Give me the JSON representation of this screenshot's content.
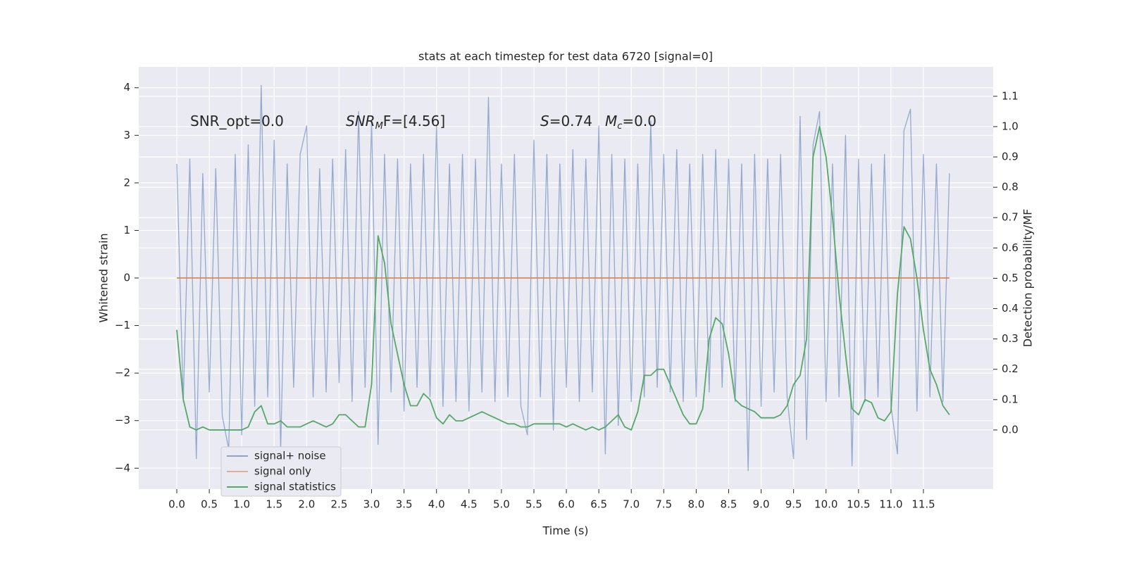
{
  "chart_data": {
    "type": "line",
    "title": "stats at each timestep for test data 6720 [signal=0]",
    "xlabel": "Time (s)",
    "ylabel": "Whitened strain",
    "y2label": "Detection probability/MF",
    "annotations": [
      [
        "SNR_opt=0.0"
      ],
      [
        "SNR",
        "M",
        "F=[4.56]"
      ],
      [
        "S",
        "=0.74"
      ],
      [
        "M",
        "c",
        "=0.0"
      ]
    ],
    "legend": "lower left",
    "grid": true,
    "xlim": [
      -0.586,
      12.574
    ],
    "ylim": [
      -4.44,
      4.44
    ],
    "y2lim": [
      -0.195,
      1.197
    ],
    "xticks": [
      {
        "value": 0,
        "label": "0.0"
      },
      {
        "value": 0.5,
        "label": "0.5"
      },
      {
        "value": 1,
        "label": "1.0"
      },
      {
        "value": 1.5,
        "label": "1.5"
      },
      {
        "value": 2,
        "label": "2.0"
      },
      {
        "value": 2.5,
        "label": "2.5"
      },
      {
        "value": 3,
        "label": "3.0"
      },
      {
        "value": 3.5,
        "label": "3.5"
      },
      {
        "value": 4,
        "label": "4.0"
      },
      {
        "value": 4.5,
        "label": "4.5"
      },
      {
        "value": 5,
        "label": "5.0"
      },
      {
        "value": 5.5,
        "label": "5.5"
      },
      {
        "value": 6,
        "label": "6.0"
      },
      {
        "value": 6.5,
        "label": "6.5"
      },
      {
        "value": 7,
        "label": "7.0"
      },
      {
        "value": 7.5,
        "label": "7.5"
      },
      {
        "value": 8,
        "label": "8.0"
      },
      {
        "value": 8.5,
        "label": "8.5"
      },
      {
        "value": 9,
        "label": "9.0"
      },
      {
        "value": 9.5,
        "label": "9.5"
      },
      {
        "value": 10,
        "label": "10.0"
      },
      {
        "value": 10.5,
        "label": "10.5"
      },
      {
        "value": 11,
        "label": "11.0"
      },
      {
        "value": 11.5,
        "label": "11.5"
      }
    ],
    "yticks": [
      {
        "value": -4,
        "label": "−4"
      },
      {
        "value": -3,
        "label": "−3"
      },
      {
        "value": -2,
        "label": "−2"
      },
      {
        "value": -1,
        "label": "−1"
      },
      0,
      1,
      2,
      3,
      4
    ],
    "y2ticks": [
      {
        "value": 0,
        "label": "0.0"
      },
      0.1,
      0.2,
      0.3,
      0.4,
      0.5,
      0.6,
      0.7,
      0.8,
      0.9,
      {
        "value": 1,
        "label": "1.0"
      },
      1.1
    ],
    "x": [
      0,
      0.1,
      0.2,
      0.3,
      0.4,
      0.5,
      0.6,
      0.7,
      0.8,
      0.9,
      1,
      1.1,
      1.2,
      1.3,
      1.4,
      1.5,
      1.6,
      1.7,
      1.8,
      1.9,
      2,
      2.1,
      2.2,
      2.3,
      2.4,
      2.5,
      2.6,
      2.7,
      2.8,
      2.9,
      3,
      3.1,
      3.2,
      3.3,
      3.4,
      3.5,
      3.6,
      3.7,
      3.8,
      3.9,
      4,
      4.1,
      4.2,
      4.3,
      4.4,
      4.5,
      4.6,
      4.7,
      4.8,
      4.9,
      5,
      5.1,
      5.2,
      5.3,
      5.4,
      5.5,
      5.6,
      5.7,
      5.8,
      5.9,
      6,
      6.1,
      6.2,
      6.3,
      6.4,
      6.5,
      6.6,
      6.7,
      6.8,
      6.9,
      7,
      7.1,
      7.2,
      7.3,
      7.4,
      7.5,
      7.6,
      7.7,
      7.8,
      7.9,
      8,
      8.1,
      8.2,
      8.3,
      8.4,
      8.5,
      8.6,
      8.7,
      8.8,
      8.9,
      9,
      9.1,
      9.2,
      9.3,
      9.4,
      9.5,
      9.6,
      9.7,
      9.8,
      9.9,
      10,
      10.1,
      10.2,
      10.3,
      10.4,
      10.5,
      10.6,
      10.7,
      10.8,
      10.9,
      11,
      11.1,
      11.2,
      11.3,
      11.4,
      11.5,
      11.6,
      11.7,
      11.8,
      11.9
    ],
    "series": [
      {
        "name": "signal+ noise",
        "color": "#4c72b0",
        "axis": "y",
        "values": [
          2.4,
          -2.6,
          2.5,
          -3.8,
          2.2,
          -2.4,
          2.3,
          -2.9,
          -3.6,
          2.6,
          -3.3,
          2.8,
          -2.7,
          4.05,
          -2.5,
          2.9,
          -3.6,
          2.4,
          -2.3,
          2.6,
          3.2,
          -2.5,
          2.3,
          -2.4,
          2.5,
          -2.2,
          2.7,
          -2.6,
          3.5,
          -2.3,
          3.3,
          -3.5,
          2.6,
          -2.4,
          2.5,
          -2.8,
          2.4,
          -2.3,
          2.6,
          -2.5,
          3.2,
          -2.7,
          2.4,
          -2.6,
          2.6,
          -2.8,
          2.5,
          -2.4,
          3.8,
          -2.6,
          2.4,
          -2.5,
          2.6,
          -2.7,
          -3.3,
          2.9,
          -2.5,
          2.6,
          -3.2,
          2.4,
          -2.3,
          2.7,
          -2.6,
          2.5,
          -2.4,
          3.2,
          -3.7,
          2.6,
          -3.1,
          2.5,
          -2.6,
          2.4,
          -2.5,
          3.3,
          -2.3,
          2.6,
          -2.4,
          2.7,
          -2.6,
          2.4,
          -2.5,
          2.6,
          -2.4,
          2.7,
          -2.3,
          2.5,
          -2.6,
          2.4,
          -4.05,
          2.6,
          -2.7,
          2.5,
          -2.4,
          2.6,
          -2.5,
          -3.8,
          3.4,
          -3.4,
          2.8,
          3.5,
          -2.6,
          2.4,
          -2.5,
          3.0,
          -3.95,
          2.5,
          -2.6,
          2.4,
          -2.5,
          2.6,
          -2.7,
          -3.7,
          3.1,
          3.55,
          -2.8,
          2.6,
          -2.5,
          2.4,
          -2.6,
          2.2
        ]
      },
      {
        "name": "signal only",
        "color": "#dd8452",
        "axis": "y",
        "values": [
          0,
          0,
          0,
          0,
          0,
          0,
          0,
          0,
          0,
          0,
          0,
          0,
          0,
          0,
          0,
          0,
          0,
          0,
          0,
          0,
          0,
          0,
          0,
          0,
          0,
          0,
          0,
          0,
          0,
          0,
          0,
          0,
          0,
          0,
          0,
          0,
          0,
          0,
          0,
          0,
          0,
          0,
          0,
          0,
          0,
          0,
          0,
          0,
          0,
          0,
          0,
          0,
          0,
          0,
          0,
          0,
          0,
          0,
          0,
          0,
          0,
          0,
          0,
          0,
          0,
          0,
          0,
          0,
          0,
          0,
          0,
          0,
          0,
          0,
          0,
          0,
          0,
          0,
          0,
          0,
          0,
          0,
          0,
          0,
          0,
          0,
          0,
          0,
          0,
          0,
          0,
          0,
          0,
          0,
          0,
          0,
          0,
          0,
          0,
          0,
          0,
          0,
          0,
          0,
          0,
          0,
          0,
          0,
          0,
          0,
          0,
          0,
          0,
          0,
          0,
          0,
          0,
          0,
          0,
          0
        ]
      },
      {
        "name": "signal statistics",
        "color": "#55a868",
        "axis": "y2",
        "values": [
          0.33,
          0.1,
          0.01,
          0,
          0.01,
          0,
          0,
          0,
          0,
          0,
          0,
          0.01,
          0.06,
          0.08,
          0.02,
          0.02,
          0.03,
          0.01,
          0.01,
          0.01,
          0.02,
          0.03,
          0.02,
          0.01,
          0.02,
          0.05,
          0.05,
          0.03,
          0.01,
          0.01,
          0.15,
          0.64,
          0.55,
          0.35,
          0.25,
          0.15,
          0.08,
          0.08,
          0.12,
          0.1,
          0.04,
          0.02,
          0.05,
          0.03,
          0.03,
          0.04,
          0.05,
          0.06,
          0.05,
          0.04,
          0.03,
          0.02,
          0.02,
          0.01,
          0.01,
          0.02,
          0.02,
          0.02,
          0.02,
          0.02,
          0.01,
          0.02,
          0.01,
          0,
          0.01,
          0,
          0.01,
          0.03,
          0.05,
          0.01,
          0,
          0.06,
          0.18,
          0.18,
          0.2,
          0.2,
          0.15,
          0.1,
          0.05,
          0.02,
          0.02,
          0.07,
          0.3,
          0.37,
          0.35,
          0.25,
          0.1,
          0.08,
          0.07,
          0.06,
          0.04,
          0.04,
          0.04,
          0.05,
          0.08,
          0.15,
          0.18,
          0.3,
          0.9,
          1.0,
          0.9,
          0.7,
          0.45,
          0.25,
          0.07,
          0.05,
          0.1,
          0.09,
          0.04,
          0.03,
          0.06,
          0.45,
          0.67,
          0.63,
          0.5,
          0.33,
          0.2,
          0.15,
          0.08,
          0.05
        ]
      }
    ]
  }
}
